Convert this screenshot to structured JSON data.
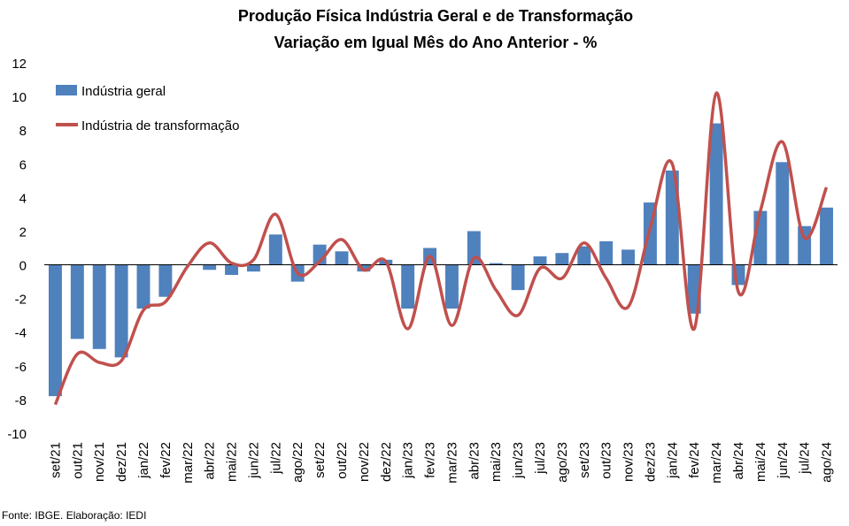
{
  "chart_data": {
    "type": "bar",
    "title": "Produção Física Indústria Geral e de Transformação",
    "subtitle": "Variação em Igual Mês do Ano Anterior - %",
    "categories": [
      "set/21",
      "out/21",
      "nov/21",
      "dez/21",
      "jan/22",
      "fev/22",
      "mar/22",
      "abr/22",
      "mai/22",
      "jun/22",
      "jul/22",
      "ago/22",
      "set/22",
      "out/22",
      "nov/22",
      "dez/22",
      "jan/23",
      "fev/23",
      "mar/23",
      "abr/23",
      "mai/23",
      "jun/23",
      "jul/23",
      "ago/23",
      "set/23",
      "out/23",
      "nov/23",
      "dez/23",
      "jan/24",
      "fev/24",
      "mar/24",
      "abr/24",
      "mai/24",
      "jun/24",
      "jul/24",
      "ago/24"
    ],
    "series": [
      {
        "name": "Indústria geral",
        "kind": "bar",
        "color": "#4F81BD",
        "values": [
          -7.8,
          -4.4,
          -5.0,
          -5.5,
          -2.6,
          -1.9,
          0.0,
          -0.3,
          -0.6,
          -0.4,
          1.8,
          -1.0,
          1.2,
          0.8,
          -0.4,
          0.3,
          -2.6,
          1.0,
          -2.6,
          2.0,
          0.1,
          -1.5,
          0.5,
          0.7,
          1.1,
          1.4,
          0.9,
          3.7,
          5.6,
          -2.9,
          8.4,
          -1.2,
          3.2,
          6.1,
          2.3,
          3.4
        ]
      },
      {
        "name": "Indústria de transformação",
        "kind": "line",
        "color": "#C0504D",
        "values": [
          -8.3,
          -5.3,
          -5.8,
          -5.7,
          -2.7,
          -2.2,
          -0.1,
          1.3,
          0.1,
          0.3,
          3.0,
          -0.5,
          0.2,
          1.5,
          -0.3,
          0.2,
          -3.8,
          0.5,
          -3.6,
          0.4,
          -1.5,
          -3.0,
          -0.2,
          -0.8,
          1.3,
          -0.8,
          -2.5,
          2.2,
          6.0,
          -3.8,
          10.2,
          -1.6,
          3.2,
          7.3,
          1.6,
          4.6
        ]
      }
    ],
    "ylim": [
      -10,
      12
    ],
    "yticks": [
      -10,
      -8,
      -6,
      -4,
      -2,
      0,
      2,
      4,
      6,
      8,
      10,
      12
    ],
    "grid": false,
    "legend": "top-left"
  },
  "source": "Fonte: IBGE. Elaboração: IEDI"
}
